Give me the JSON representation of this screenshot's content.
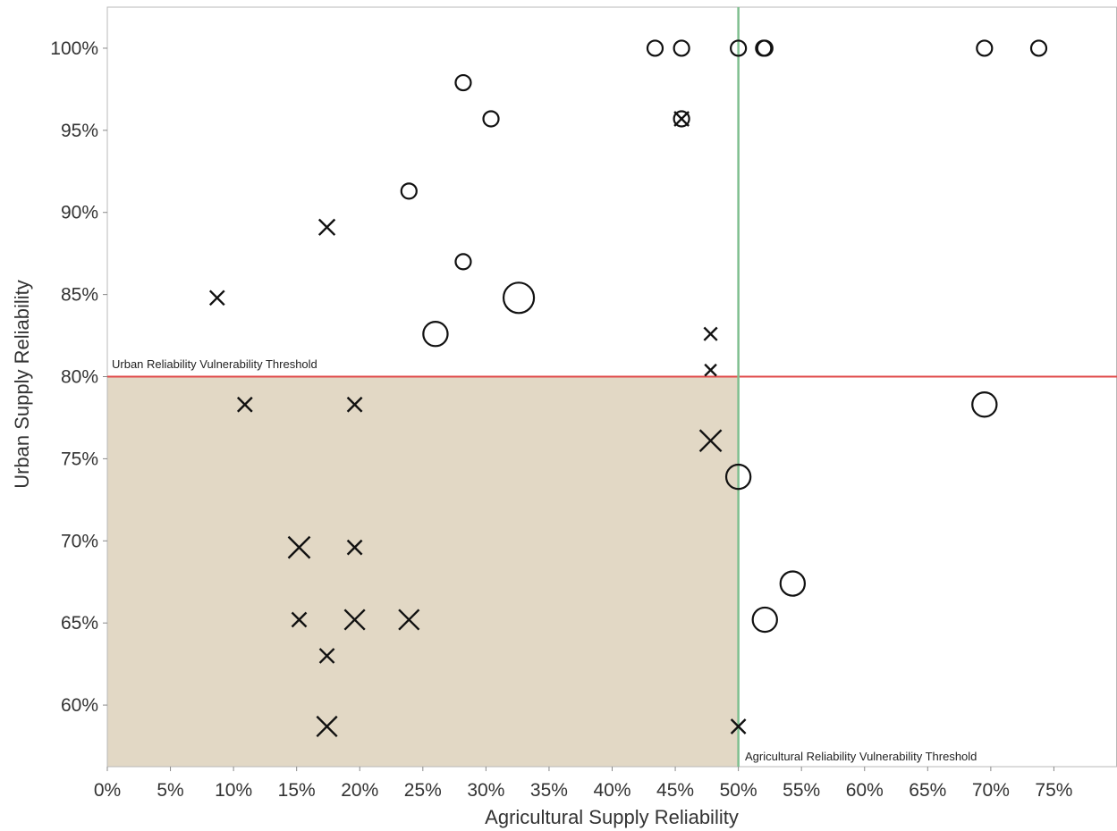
{
  "chart_data": {
    "type": "scatter",
    "xlabel": "Agricultural Supply Reliability",
    "ylabel": "Urban Supply Reliability",
    "xlim": [
      0,
      0.8
    ],
    "ylim": [
      0.5625,
      1.025
    ],
    "x_ticks": [
      0,
      0.05,
      0.1,
      0.15,
      0.2,
      0.25,
      0.3,
      0.35,
      0.4,
      0.45,
      0.5,
      0.55,
      0.6,
      0.65,
      0.7,
      0.75
    ],
    "x_tick_labels": [
      "0%",
      "5%",
      "10%",
      "15%",
      "20%",
      "25%",
      "30%",
      "35%",
      "40%",
      "45%",
      "50%",
      "55%",
      "60%",
      "65%",
      "70%",
      "75%"
    ],
    "y_ticks": [
      0.6,
      0.65,
      0.7,
      0.75,
      0.8,
      0.85,
      0.9,
      0.95,
      1.0
    ],
    "y_tick_labels": [
      "60%",
      "65%",
      "70%",
      "75%",
      "80%",
      "85%",
      "90%",
      "95%",
      "100%"
    ],
    "grid": false,
    "thresholds": {
      "urban": {
        "value": 0.8,
        "label": "Urban Reliability Vulnerability Threshold",
        "color": "#e04a4a"
      },
      "agricultural": {
        "value": 0.5,
        "label": "Agricultural Reliability Vulnerability Threshold",
        "color": "#7fbf8f"
      }
    },
    "vulnerable_region_color": "#e2d8c5",
    "marker_color": "#111111",
    "series": [
      {
        "marker": "circle",
        "points": [
          {
            "x": 0.434,
            "y": 1.0,
            "size": 1
          },
          {
            "x": 0.455,
            "y": 1.0,
            "size": 1
          },
          {
            "x": 0.5,
            "y": 1.0,
            "size": 1
          },
          {
            "x": 0.52,
            "y": 1.0,
            "size": 1
          },
          {
            "x": 0.521,
            "y": 1.0,
            "size": 1
          },
          {
            "x": 0.695,
            "y": 1.0,
            "size": 1
          },
          {
            "x": 0.738,
            "y": 1.0,
            "size": 1
          },
          {
            "x": 0.282,
            "y": 0.979,
            "size": 1
          },
          {
            "x": 0.304,
            "y": 0.957,
            "size": 1
          },
          {
            "x": 0.455,
            "y": 0.957,
            "size": 1
          },
          {
            "x": 0.239,
            "y": 0.913,
            "size": 1
          },
          {
            "x": 0.282,
            "y": 0.87,
            "size": 1
          },
          {
            "x": 0.326,
            "y": 0.848,
            "size": 2
          },
          {
            "x": 0.26,
            "y": 0.826,
            "size": 1.6
          },
          {
            "x": 0.695,
            "y": 0.783,
            "size": 1.6
          },
          {
            "x": 0.5,
            "y": 0.739,
            "size": 1.6
          },
          {
            "x": 0.543,
            "y": 0.674,
            "size": 1.6
          },
          {
            "x": 0.521,
            "y": 0.652,
            "size": 1.6
          }
        ]
      },
      {
        "marker": "x",
        "points": [
          {
            "x": 0.455,
            "y": 0.957,
            "size": 1
          },
          {
            "x": 0.174,
            "y": 0.891,
            "size": 1.1
          },
          {
            "x": 0.087,
            "y": 0.848,
            "size": 1
          },
          {
            "x": 0.478,
            "y": 0.826,
            "size": 0.9
          },
          {
            "x": 0.478,
            "y": 0.804,
            "size": 0.8
          },
          {
            "x": 0.109,
            "y": 0.783,
            "size": 1
          },
          {
            "x": 0.196,
            "y": 0.783,
            "size": 1
          },
          {
            "x": 0.478,
            "y": 0.761,
            "size": 1.5
          },
          {
            "x": 0.152,
            "y": 0.696,
            "size": 1.5
          },
          {
            "x": 0.196,
            "y": 0.696,
            "size": 1
          },
          {
            "x": 0.152,
            "y": 0.652,
            "size": 1
          },
          {
            "x": 0.196,
            "y": 0.652,
            "size": 1.4
          },
          {
            "x": 0.239,
            "y": 0.652,
            "size": 1.4
          },
          {
            "x": 0.174,
            "y": 0.63,
            "size": 1
          },
          {
            "x": 0.174,
            "y": 0.587,
            "size": 1.4
          },
          {
            "x": 0.5,
            "y": 0.587,
            "size": 1
          }
        ]
      }
    ]
  }
}
